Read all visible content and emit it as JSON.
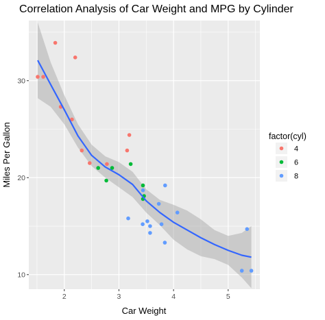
{
  "chart_data": {
    "type": "scatter",
    "title": "Correlation Analysis of Car Weight and MPG by Cylinder",
    "xlabel": "Car Weight",
    "ylabel": "Miles Per Gallon",
    "xlim": [
      1.35,
      5.58
    ],
    "ylim": [
      8.5,
      36.2
    ],
    "x_ticks": [
      2,
      3,
      4,
      5
    ],
    "y_ticks": [
      10,
      20,
      30
    ],
    "x_tick_labels": [
      "2",
      "3",
      "4",
      "5"
    ],
    "y_tick_labels": [
      "10",
      "20",
      "30"
    ],
    "grid": true,
    "panel_background": "#ebebeb",
    "legend": {
      "title": "factor(cyl)",
      "position": "right",
      "entries": [
        {
          "label": "4",
          "color": "#f8766d"
        },
        {
          "label": "6",
          "color": "#00ba38"
        },
        {
          "label": "8",
          "color": "#619cff"
        }
      ]
    },
    "series": [
      {
        "name": "4",
        "color": "#f8766d",
        "points": [
          [
            2.32,
            22.8
          ],
          [
            3.19,
            24.4
          ],
          [
            3.15,
            22.8
          ],
          [
            2.2,
            32.4
          ],
          [
            1.615,
            30.4
          ],
          [
            1.835,
            33.9
          ],
          [
            2.465,
            21.5
          ],
          [
            1.935,
            27.3
          ],
          [
            2.14,
            26.0
          ],
          [
            1.513,
            30.4
          ],
          [
            2.78,
            21.4
          ]
        ]
      },
      {
        "name": "6",
        "color": "#00ba38",
        "points": [
          [
            2.62,
            21.0
          ],
          [
            2.875,
            21.0
          ],
          [
            3.215,
            21.4
          ],
          [
            3.46,
            18.1
          ],
          [
            3.44,
            19.2
          ],
          [
            3.44,
            17.8
          ],
          [
            2.77,
            19.7
          ]
        ]
      },
      {
        "name": "8",
        "color": "#619cff",
        "points": [
          [
            3.44,
            18.7
          ],
          [
            3.57,
            14.3
          ],
          [
            4.07,
            16.4
          ],
          [
            3.73,
            17.3
          ],
          [
            3.78,
            15.2
          ],
          [
            5.25,
            10.4
          ],
          [
            5.424,
            10.4
          ],
          [
            5.345,
            14.7
          ],
          [
            3.52,
            15.5
          ],
          [
            3.435,
            15.2
          ],
          [
            3.84,
            13.3
          ],
          [
            3.845,
            19.2
          ],
          [
            3.17,
            15.8
          ],
          [
            3.57,
            15.0
          ]
        ]
      }
    ],
    "smooth": {
      "method": "loess",
      "color": "#3366ff",
      "band_color": "#999999",
      "x": [
        1.513,
        1.75,
        2.0,
        2.25,
        2.5,
        2.75,
        3.0,
        3.25,
        3.5,
        3.75,
        4.0,
        4.25,
        4.5,
        4.75,
        5.0,
        5.25,
        5.424
      ],
      "y": [
        32.1,
        29.6,
        27.0,
        24.3,
        22.3,
        21.1,
        20.3,
        19.3,
        17.6,
        16.4,
        15.4,
        14.6,
        13.8,
        13.1,
        12.5,
        12.0,
        11.8
      ],
      "lower": [
        28.2,
        27.3,
        25.5,
        23.1,
        21.2,
        20.0,
        19.0,
        18.0,
        16.4,
        15.1,
        13.6,
        12.6,
        11.9,
        11.6,
        11.0,
        9.7,
        8.6
      ],
      "upper": [
        36.0,
        31.9,
        28.5,
        25.5,
        23.4,
        22.2,
        21.6,
        20.6,
        18.8,
        17.7,
        17.2,
        16.6,
        15.7,
        14.6,
        14.0,
        14.3,
        15.0
      ]
    }
  }
}
